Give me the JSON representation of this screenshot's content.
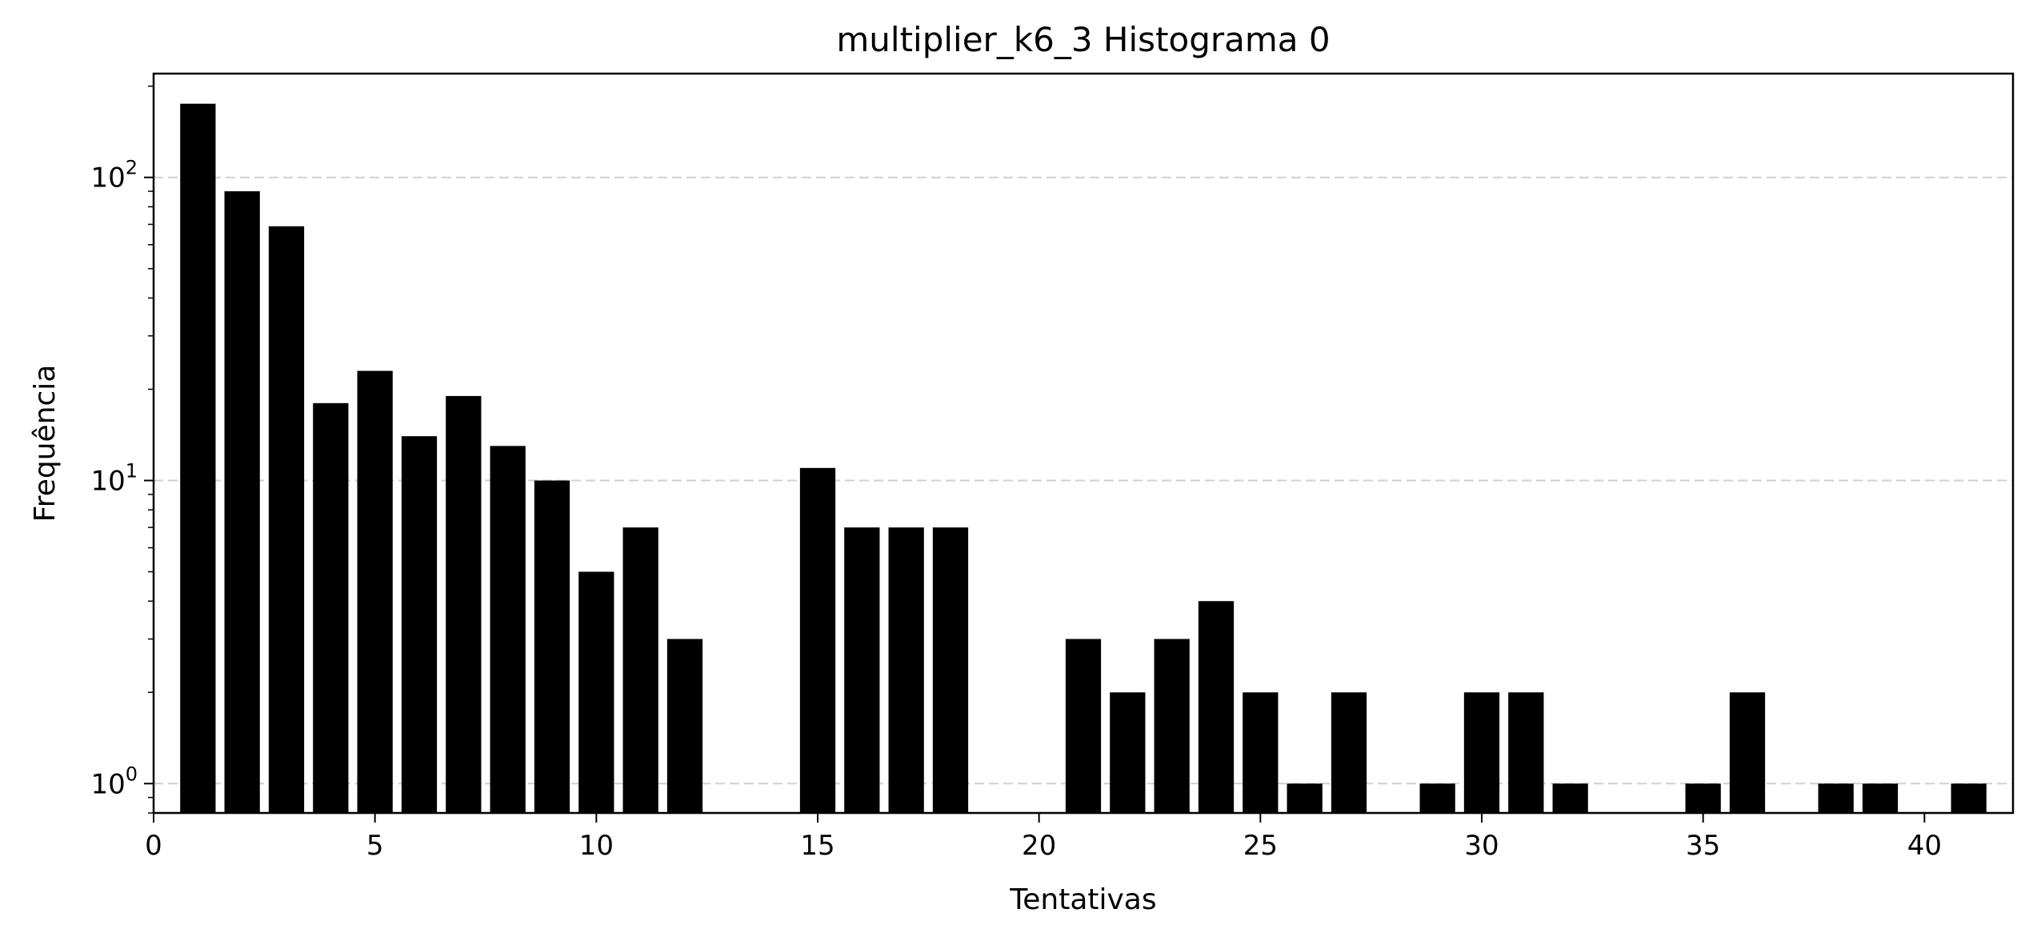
{
  "chart_data": {
    "type": "bar",
    "title": "multiplier_k6_3 Histograma 0",
    "xlabel": "Tentativas",
    "ylabel": "Frequência",
    "y_scale": "log",
    "grid": "y-major-dashed",
    "xlim": [
      0,
      42
    ],
    "ylim": [
      0.8,
      220
    ],
    "x_ticks": [
      0,
      5,
      10,
      15,
      20,
      25,
      30,
      35,
      40
    ],
    "y_ticks": [
      {
        "value": 1,
        "base": "10",
        "exp": "0"
      },
      {
        "value": 10,
        "base": "10",
        "exp": "1"
      },
      {
        "value": 100,
        "base": "10",
        "exp": "2"
      }
    ],
    "bar_color": "#000000",
    "x": [
      1,
      2,
      3,
      4,
      5,
      6,
      7,
      8,
      9,
      10,
      11,
      12,
      15,
      16,
      17,
      18,
      21,
      22,
      23,
      24,
      25,
      26,
      27,
      29,
      30,
      31,
      32,
      35,
      36,
      38,
      39,
      41
    ],
    "values": [
      175,
      90,
      69,
      18,
      23,
      14,
      19,
      13,
      10,
      5,
      7,
      3,
      11,
      7,
      7,
      7,
      3,
      2,
      3,
      4,
      2,
      1,
      2,
      1,
      2,
      2,
      1,
      1,
      2,
      1,
      1,
      1
    ]
  }
}
